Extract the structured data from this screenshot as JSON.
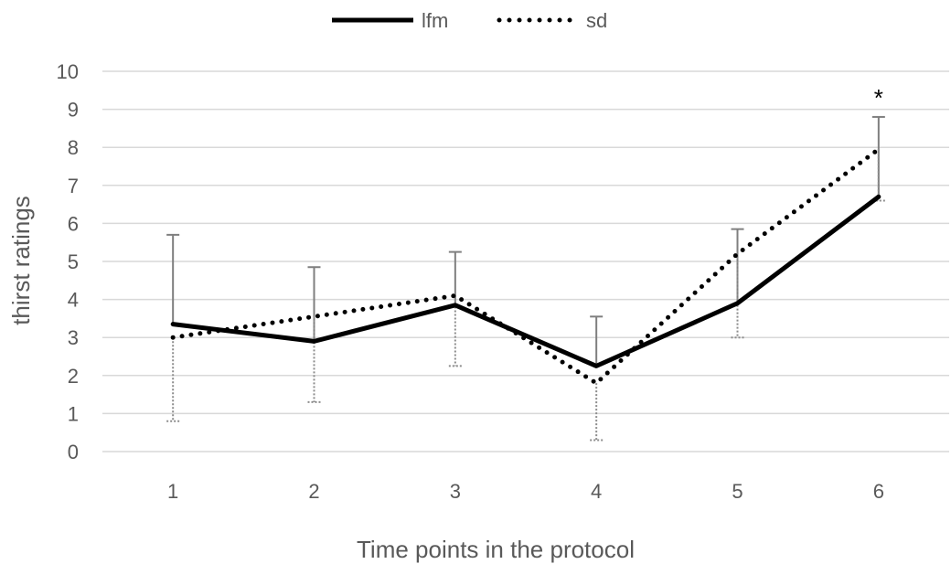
{
  "chart_data": {
    "type": "line",
    "x": [
      1,
      2,
      3,
      4,
      5,
      6
    ],
    "xlabel": "Time points in the protocol",
    "ylabel": "thirst ratings",
    "ylim": [
      0,
      10
    ],
    "yticks": [
      0,
      1,
      2,
      3,
      4,
      5,
      6,
      7,
      8,
      9,
      10
    ],
    "grid": true,
    "legend_position": "top-center",
    "series": [
      {
        "name": "lfm",
        "style": "solid",
        "color": "#000000",
        "values": [
          3.35,
          2.9,
          3.85,
          2.25,
          3.9,
          6.7
        ],
        "error_upper": [
          5.7,
          4.85,
          5.25,
          3.55,
          5.85,
          8.8
        ]
      },
      {
        "name": "sd",
        "style": "dotted",
        "color": "#000000",
        "values": [
          3.0,
          3.55,
          4.1,
          1.8,
          5.2,
          7.95
        ],
        "error_lower": [
          0.8,
          1.3,
          2.25,
          0.3,
          3.0,
          6.6
        ]
      }
    ],
    "annotations": [
      {
        "text": "*",
        "x": 6
      }
    ]
  }
}
